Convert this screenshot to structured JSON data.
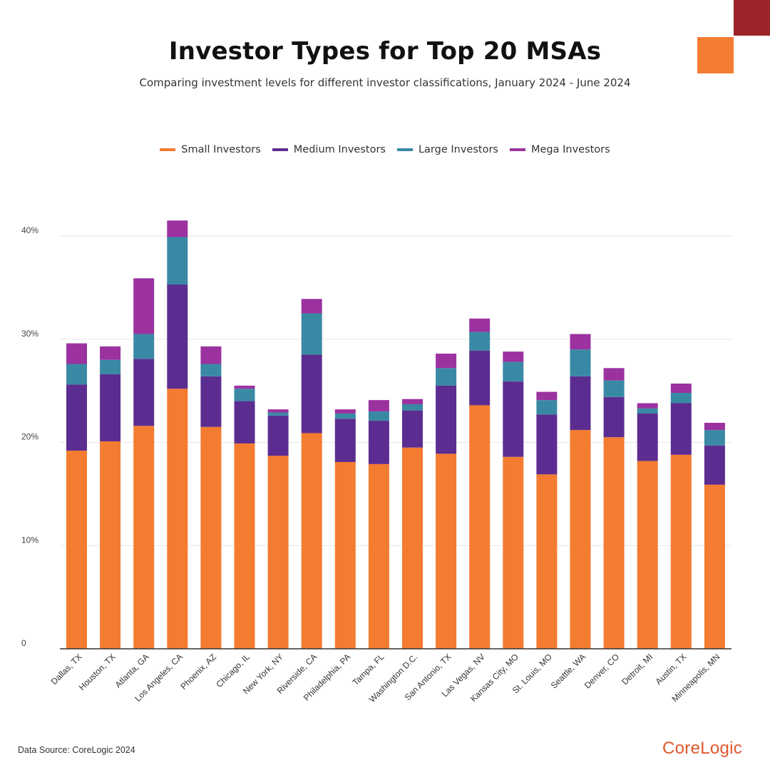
{
  "header": {
    "title": "Investor Types for Top 20 MSAs",
    "subtitle": "Comparing investment levels for different investor classifications, January 2024 - June 2024"
  },
  "footer": {
    "source": "Data Source: CoreLogic 2024",
    "logo": "CoreLogic"
  },
  "colors": {
    "small": "#f47c30",
    "medium": "#5c2d91",
    "large": "#3a89a4",
    "mega": "#9b32a0",
    "accent_red": "#9b2528",
    "accent_orange": "#f47c30",
    "grid": "#e6e6e6",
    "axis": "#333333"
  },
  "chart_data": {
    "type": "bar",
    "stacked": true,
    "title": "Investor Types for Top 20 MSAs",
    "subtitle": "Comparing investment levels for different investor classifications, January 2024 - June 2024",
    "xlabel": "",
    "ylabel": "",
    "ylim": [
      0,
      40
    ],
    "yticks": [
      0,
      10,
      20,
      30,
      40
    ],
    "ytick_labels": [
      "0",
      "10%",
      "20%",
      "30%",
      "40%"
    ],
    "grid": true,
    "legend_position": "top-center",
    "categories": [
      "Dallas, TX",
      "Houston, TX",
      "Atlanta, GA",
      "Los Angeles, CA",
      "Phoenix, AZ",
      "Chicago, IL",
      "New York, NY",
      "Riverside, CA",
      "Philadelphia, PA",
      "Tampa, FL",
      "Washington D.C.",
      "San Antonio, TX",
      "Las Vegas, NV",
      "Kansas City, MO",
      "St. Louis, MO",
      "Seattle, WA",
      "Denver, CO",
      "Detroit, MI",
      "Austin, TX",
      "Minneapolis, MN"
    ],
    "series": [
      {
        "name": "Small Investors",
        "color": "#f47c30",
        "values": [
          19.2,
          20.1,
          21.6,
          25.2,
          21.5,
          19.9,
          18.7,
          20.9,
          18.1,
          17.9,
          19.5,
          18.9,
          23.6,
          18.6,
          16.9,
          21.2,
          20.5,
          18.2,
          18.8,
          15.9
        ]
      },
      {
        "name": "Medium Investors",
        "color": "#5c2d91",
        "values": [
          6.4,
          6.5,
          6.5,
          10.1,
          4.9,
          4.1,
          3.9,
          7.6,
          4.2,
          4.2,
          3.6,
          6.6,
          5.3,
          7.3,
          5.8,
          5.2,
          3.9,
          4.6,
          5.0,
          3.8
        ]
      },
      {
        "name": "Large Investors",
        "color": "#3a89a4",
        "values": [
          2.0,
          1.4,
          2.4,
          4.6,
          1.2,
          1.2,
          0.3,
          4.0,
          0.5,
          0.9,
          0.6,
          1.7,
          1.8,
          1.9,
          1.4,
          2.6,
          1.6,
          0.5,
          1.0,
          1.5
        ]
      },
      {
        "name": "Mega Investors",
        "color": "#9b32a0",
        "values": [
          2.0,
          1.3,
          5.4,
          1.6,
          1.7,
          0.3,
          0.3,
          1.4,
          0.4,
          1.1,
          0.5,
          1.4,
          1.3,
          1.0,
          0.8,
          1.5,
          1.2,
          0.5,
          0.9,
          0.7
        ]
      }
    ]
  }
}
